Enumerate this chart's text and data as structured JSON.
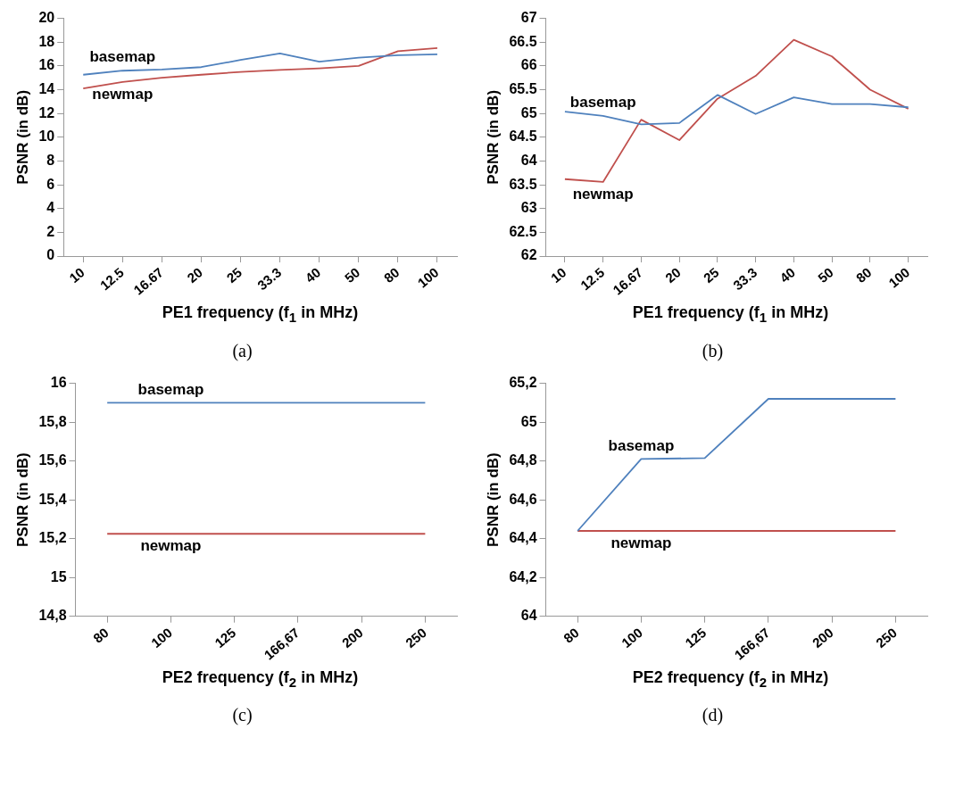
{
  "chart_data": [
    {
      "type": "line",
      "xlabel": "PE1 frequency (f$_{1}$ in MHz)",
      "ylabel": "PSNR (in dB)",
      "annotations": [
        "(a)"
      ],
      "categories": [
        "10",
        "12.5",
        "16.67",
        "20",
        "25",
        "33.3",
        "40",
        "50",
        "80",
        "100"
      ],
      "series": [
        {
          "name": "basemap",
          "color": "#4f81bd",
          "values": [
            15.26,
            15.6,
            15.7,
            15.9,
            16.5,
            17.05,
            16.36,
            16.7,
            16.9,
            16.97
          ]
        },
        {
          "name": "newmap",
          "color": "#c0504d",
          "values": [
            14.1,
            14.65,
            15.0,
            15.26,
            15.5,
            15.66,
            15.8,
            16.0,
            17.24,
            17.5
          ]
        }
      ],
      "ylim": [
        0,
        20
      ],
      "yticks": [
        0,
        2,
        4,
        6,
        8,
        10,
        12,
        14,
        16,
        18,
        20
      ],
      "grid": false
    },
    {
      "type": "line",
      "xlabel": "PE1 frequency (f$_{1}$ in MHz)",
      "ylabel": "PSNR (in dB)",
      "annotations": [
        "(b)"
      ],
      "categories": [
        "10",
        "12.5",
        "16.67",
        "20",
        "25",
        "33.3",
        "40",
        "50",
        "80",
        "100"
      ],
      "series": [
        {
          "name": "basemap",
          "color": "#4f81bd",
          "values": [
            65.04,
            64.95,
            64.77,
            64.8,
            65.39,
            64.99,
            65.34,
            65.2,
            65.2,
            65.13
          ]
        },
        {
          "name": "newmap",
          "color": "#c0504d",
          "values": [
            63.62,
            63.56,
            64.87,
            64.44,
            65.31,
            65.79,
            66.55,
            66.2,
            65.5,
            65.1
          ]
        }
      ],
      "ylim": [
        62,
        67
      ],
      "yticks": [
        62,
        62.5,
        63,
        63.5,
        64,
        64.5,
        65,
        65.5,
        66,
        66.5,
        67
      ],
      "grid": false
    },
    {
      "type": "line",
      "xlabel": "PE2 frequency (f$_{2}$ in MHz)",
      "ylabel": "PSNR (in dB)",
      "annotations": [
        "(c)"
      ],
      "categories": [
        "80",
        "100",
        "125",
        "166,67",
        "200",
        "250"
      ],
      "series": [
        {
          "name": "basemap",
          "color": "#4f81bd",
          "values": [
            15.9,
            15.9,
            15.9,
            15.9,
            15.9,
            15.9
          ]
        },
        {
          "name": "newmap",
          "color": "#c0504d",
          "values": [
            15.225,
            15.225,
            15.225,
            15.225,
            15.225,
            15.225
          ]
        }
      ],
      "ylim": [
        14.8,
        16
      ],
      "yticks": [
        {
          "value": 14.8,
          "label": "14,8"
        },
        15,
        {
          "value": 15.2,
          "label": "15,2"
        },
        {
          "value": 15.4,
          "label": "15,4"
        },
        {
          "value": 15.6,
          "label": "15,6"
        },
        {
          "value": 15.8,
          "label": "15,8"
        },
        16
      ],
      "grid": false
    },
    {
      "type": "line",
      "xlabel": "PE2 frequency (f$_{2}$ in MHz)",
      "ylabel": "PSNR (in dB)",
      "annotations": [
        "(d)"
      ],
      "categories": [
        "80",
        "100",
        "125",
        "166,67",
        "200",
        "250"
      ],
      "series": [
        {
          "name": "basemap",
          "color": "#4f81bd",
          "values": [
            64.44,
            64.81,
            64.815,
            65.12,
            65.12,
            65.12
          ]
        },
        {
          "name": "newmap",
          "color": "#c0504d",
          "values": [
            64.44,
            64.44,
            64.44,
            64.44,
            64.44,
            64.44
          ]
        }
      ],
      "ylim": [
        64,
        65.2
      ],
      "yticks": [
        64,
        {
          "value": 64.2,
          "label": "64,2"
        },
        {
          "value": 64.4,
          "label": "64,4"
        },
        {
          "value": 64.6,
          "label": "64,6"
        },
        {
          "value": 64.8,
          "label": "64,8"
        },
        65,
        {
          "value": 65.2,
          "label": "65,2"
        }
      ],
      "grid": false
    }
  ]
}
